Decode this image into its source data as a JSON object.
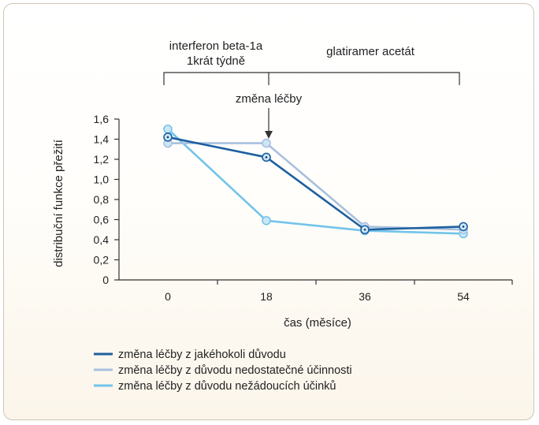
{
  "chart_data": {
    "type": "line",
    "title": "",
    "xlabel": "čas (měsíce)",
    "ylabel": "distribuční funkce přežití",
    "x": [
      0,
      18,
      36,
      54
    ],
    "x_tick_labels": [
      "0",
      "18",
      "36",
      "54"
    ],
    "ylim": [
      0,
      1.6
    ],
    "y_ticks": [
      0,
      0.2,
      0.4,
      0.6,
      0.8,
      1.0,
      1.2,
      1.4,
      1.6
    ],
    "y_tick_labels": [
      "0",
      "0,2",
      "0,4",
      "0,6",
      "0,8",
      "1,0",
      "1,2",
      "1,4",
      "1,6"
    ],
    "grid": false,
    "legend_position": "bottom-left",
    "series": [
      {
        "name": "změna léčby z jakéhokoli důvodu",
        "color": "#1e5fa0",
        "values": [
          1.42,
          1.22,
          0.5,
          0.53
        ]
      },
      {
        "name": "změna léčby z důvodu nedostatečné účinnosti",
        "color": "#a8c0de",
        "values": [
          1.36,
          1.36,
          0.53,
          0.5
        ]
      },
      {
        "name": "změna léčby z důvodu nežádoucích účinků",
        "color": "#72c4ea",
        "values": [
          1.5,
          0.59,
          0.49,
          0.46
        ]
      }
    ],
    "annotations": {
      "phase1_line1": "interferon beta-1a",
      "phase1_line2": "1krát týdně",
      "phase2": "glatiramer acetát",
      "switch_label": "změna léčby",
      "switch_at_x": 18
    }
  },
  "colors": {
    "panel_border": "#d2c6b4",
    "axis": "#333333",
    "marker_fill": "#cde6f7"
  }
}
